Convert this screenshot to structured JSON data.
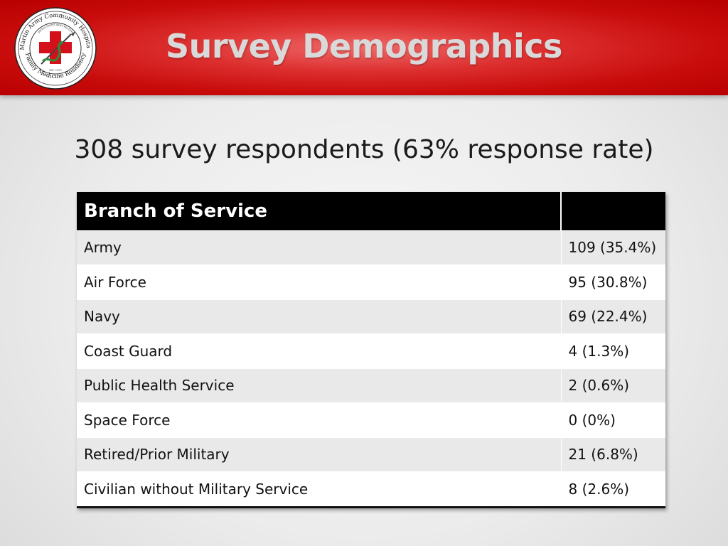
{
  "header": {
    "title": "Survey Demographics",
    "logo": {
      "text_top": "Martin Army Community Hospital",
      "text_bottom": "Family Medicine Residency",
      "text_inner": "UNITED STATES ARMY MILITARY",
      "est": "EST. 1973",
      "icon": "red-cross-caduceus-icon"
    }
  },
  "subtitle": "308 survey respondents (63% response rate)",
  "table": {
    "headers": [
      "Branch of Service",
      ""
    ],
    "rows": [
      {
        "branch": "Army",
        "value": "109 (35.4%)"
      },
      {
        "branch": "Air Force",
        "value": "95 (30.8%)"
      },
      {
        "branch": "Navy",
        "value": "69 (22.4%)"
      },
      {
        "branch": "Coast Guard",
        "value": "4 (1.3%)"
      },
      {
        "branch": "Public Health Service",
        "value": "2 (0.6%)"
      },
      {
        "branch": "Space Force",
        "value": "0 (0%)"
      },
      {
        "branch": "Retired/Prior Military",
        "value": "21 (6.8%)"
      },
      {
        "branch": "Civilian without Military Service",
        "value": "8 (2.6%)"
      }
    ]
  },
  "colors": {
    "header_red": "#c80b0b",
    "title_gray": "#d9d9d9",
    "table_header_bg": "#000000",
    "row_alt": "#e9e9e9"
  }
}
